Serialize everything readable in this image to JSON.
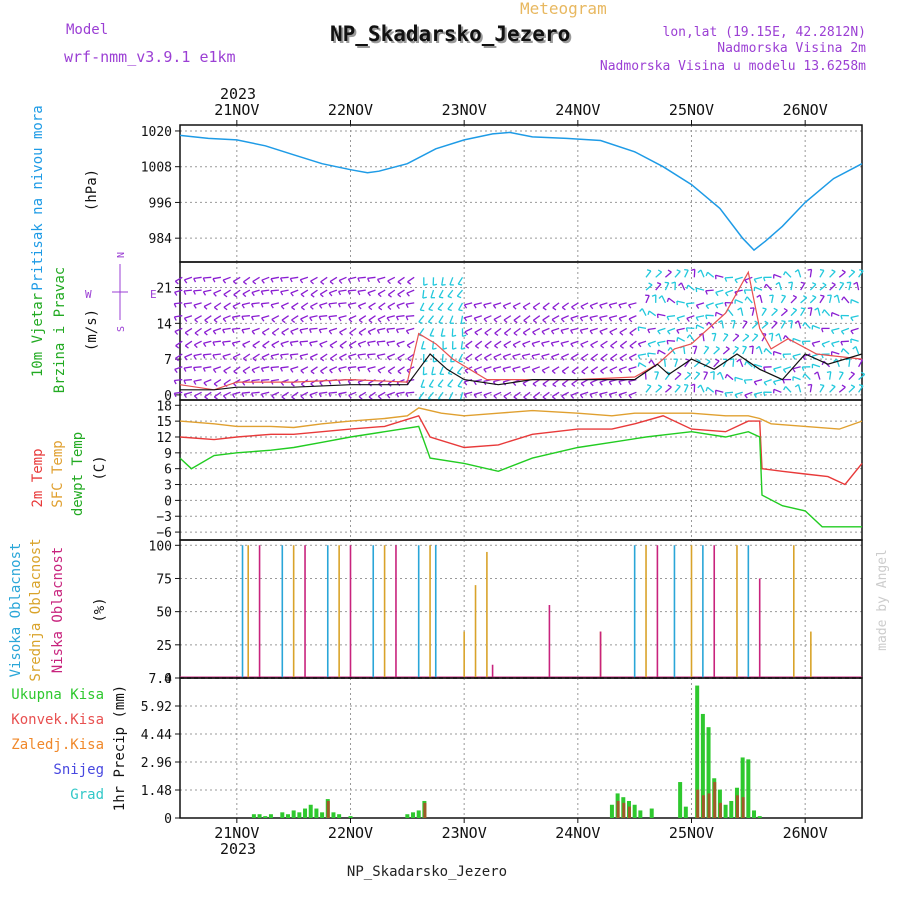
{
  "header": {
    "model_label": "Model",
    "model_name": "wrf-nmm_v3.9.1 e1km",
    "meteogram_label": "Meteogram",
    "station_title": "NP_Skadarsko_Jezero",
    "lonlat": "lon,lat (19.15E, 42.2812N)",
    "station_alt": "Nadmorska Visina 2m",
    "model_alt": "Nadmorska Visina u modelu 13.6258m",
    "footer_station": "NP_Skadarsko_Jezero",
    "credit": "made by Angel"
  },
  "colors": {
    "pressure": "#1e9be6",
    "temp2m": "#e83a3a",
    "sfc_temp": "#e0a030",
    "dewpt": "#22cc22",
    "wind_purple": "#8a1ed2",
    "wind_cyan": "#22c8dc",
    "high_cloud": "#2aa6d8",
    "mid_cloud": "#d9a32a",
    "low_cloud": "#c8237d",
    "precip_total": "#2ec82e",
    "precip_conv": "#e85050",
    "frozen": "#f0882a",
    "snow": "#4848e0",
    "graupel": "#32c8c8",
    "label_purple": "#9b3fd4"
  },
  "x_axis": {
    "year": "2023",
    "ticks": [
      "21NOV",
      "22NOV",
      "23NOV",
      "24NOV",
      "25NOV",
      "26NOV"
    ],
    "tick_days": [
      21,
      22,
      23,
      24,
      25,
      26
    ],
    "range_days": [
      20.5,
      26.5
    ]
  },
  "chart_data": [
    {
      "type": "line",
      "ylabel_main": "Pritisak na nivou mora",
      "ylabel_unit": "(hPa)",
      "yticks": [
        "1020",
        "1008",
        "996",
        "984"
      ],
      "ytick_values": [
        1020,
        1008,
        996,
        984
      ],
      "ylim": [
        976,
        1022
      ],
      "grid": true,
      "series": [
        {
          "x": [
            20.5,
            20.75,
            21.0,
            21.25,
            21.5,
            21.75,
            22.0,
            22.15,
            22.25,
            22.5,
            22.75,
            23.0,
            23.25,
            23.4,
            23.6,
            23.9,
            24.2,
            24.5,
            24.75,
            25.0,
            25.25,
            25.45,
            25.55,
            25.65,
            25.8,
            26.0,
            26.25,
            26.5
          ],
          "values": [
            1018.5,
            1017.5,
            1017.0,
            1015.0,
            1012.0,
            1009.0,
            1007.0,
            1006.0,
            1006.5,
            1009.0,
            1014.0,
            1017.0,
            1019.0,
            1019.5,
            1018.0,
            1017.5,
            1016.8,
            1013.0,
            1008.0,
            1002.0,
            994.0,
            984.0,
            980.0,
            983.0,
            988.0,
            996.0,
            1004.0,
            1009.0
          ]
        }
      ]
    },
    {
      "type": "line",
      "ylabel_lines": [
        "10m Vjetar",
        "Brzina i Pravac"
      ],
      "ylabel_unit": "(m/s)",
      "compass": {
        "n": "N",
        "s": "S",
        "e": "E",
        "w": "W"
      },
      "yticks": [
        "21",
        "14",
        "7",
        "0"
      ],
      "ytick_values": [
        21,
        14,
        7,
        0
      ],
      "ylim": [
        -1,
        26
      ],
      "grid": true,
      "series": [
        {
          "x": [
            20.5,
            20.8,
            21.0,
            21.5,
            22.0,
            22.5,
            22.6,
            22.7,
            22.85,
            23.0,
            23.3,
            23.6,
            23.9,
            24.2,
            24.5,
            24.7,
            24.8,
            25.0,
            25.2,
            25.4,
            25.6,
            25.8,
            26.0,
            26.2,
            26.5
          ],
          "values": [
            1,
            1,
            1.5,
            1.5,
            2,
            2,
            5,
            8,
            5,
            3,
            2,
            3,
            3,
            3,
            3,
            6,
            4,
            7,
            5,
            8,
            5,
            3,
            8,
            6,
            8
          ]
        },
        {
          "x": [
            20.5,
            20.8,
            21.0,
            21.5,
            22.0,
            22.5,
            22.6,
            22.75,
            22.9,
            23.2,
            23.5,
            24.0,
            24.5,
            24.7,
            24.85,
            25.0,
            25.3,
            25.5,
            25.6,
            25.7,
            25.85,
            26.1,
            26.5
          ],
          "values": [
            2,
            1,
            2.5,
            2.5,
            3,
            2.5,
            12,
            10,
            7,
            3,
            3,
            3,
            3.5,
            6,
            9,
            10,
            16,
            24,
            13,
            9,
            11,
            8,
            7
          ]
        }
      ]
    },
    {
      "type": "line",
      "ylabel_lines": [
        "2m Temp",
        "SFC Temp",
        "dewpt Temp"
      ],
      "ylabel_unit": "(C)",
      "yticks": [
        "18",
        "15",
        "12",
        "9",
        "6",
        "3",
        "0",
        "−3",
        "−6"
      ],
      "ytick_values": [
        18,
        15,
        12,
        9,
        6,
        3,
        0,
        -3,
        -6
      ],
      "ylim": [
        -7.5,
        19
      ],
      "grid": true,
      "series": [
        {
          "name": "2m Temp",
          "x": [
            20.5,
            20.8,
            21.0,
            21.3,
            21.5,
            21.75,
            22.0,
            22.3,
            22.6,
            22.7,
            23.0,
            23.3,
            23.6,
            24.0,
            24.3,
            24.5,
            24.75,
            25.0,
            25.3,
            25.5,
            25.6,
            25.62,
            25.8,
            26.0,
            26.2,
            26.35,
            26.5
          ],
          "values": [
            12,
            11.5,
            12,
            12.5,
            12.5,
            13,
            13.5,
            14,
            16,
            12,
            10,
            10.5,
            12.5,
            13.5,
            13.5,
            14.5,
            16,
            13.5,
            13,
            15,
            15,
            6,
            5.5,
            5,
            4.5,
            3,
            7
          ]
        },
        {
          "name": "SFC Temp",
          "x": [
            20.5,
            20.8,
            21.0,
            21.3,
            21.5,
            21.75,
            22.0,
            22.3,
            22.5,
            22.6,
            22.8,
            23.0,
            23.3,
            23.6,
            24.0,
            24.3,
            24.5,
            24.75,
            25.0,
            25.3,
            25.5,
            25.6,
            25.7,
            26.0,
            26.3,
            26.5
          ],
          "values": [
            15,
            14.5,
            14,
            14,
            13.8,
            14.5,
            15,
            15.5,
            16,
            17.5,
            16.5,
            16,
            16.5,
            17,
            16.5,
            16,
            16.5,
            16.5,
            16.5,
            16,
            16,
            15.5,
            14.5,
            14,
            13.5,
            15
          ]
        },
        {
          "name": "dewpt Temp",
          "x": [
            20.5,
            20.6,
            20.8,
            21.0,
            21.3,
            21.5,
            21.75,
            22.0,
            22.3,
            22.6,
            22.7,
            23.0,
            23.3,
            23.6,
            24.0,
            24.3,
            24.6,
            24.8,
            25.0,
            25.3,
            25.5,
            25.6,
            25.62,
            25.8,
            26.0,
            26.15,
            26.5
          ],
          "values": [
            8,
            6,
            8.5,
            9,
            9.5,
            10,
            11,
            12,
            13,
            14,
            8,
            7,
            5.5,
            8,
            10,
            11,
            12,
            12.5,
            13,
            12,
            13,
            12,
            1,
            -1,
            -2,
            -5,
            -5
          ]
        }
      ]
    },
    {
      "type": "bar",
      "ylabel_lines": [
        "Visoka Oblacnost",
        "Srednja Oblacnost",
        "Niska Oblacnost"
      ],
      "ylabel_unit": "(%)",
      "yticks": [
        "100",
        "75",
        "50",
        "25",
        "0"
      ],
      "ytick_values": [
        100,
        75,
        50,
        25,
        0
      ],
      "ylim": [
        0,
        104
      ],
      "grid": true,
      "series": [
        {
          "name": "Visoka Oblacnost",
          "x": [
            21.05,
            21.4,
            21.8,
            22.2,
            22.6,
            22.75,
            24.5,
            24.85,
            25.1,
            25.5
          ],
          "values": [
            100,
            100,
            100,
            100,
            100,
            100,
            100,
            100,
            100,
            100
          ]
        },
        {
          "name": "Srednja Oblacnost",
          "x": [
            21.1,
            21.5,
            21.9,
            22.3,
            22.7,
            23.0,
            23.1,
            23.2,
            24.2,
            24.6,
            25.0,
            25.4,
            25.9,
            26.05
          ],
          "values": [
            100,
            100,
            100,
            100,
            100,
            35,
            70,
            95,
            35,
            100,
            100,
            100,
            100,
            35
          ]
        },
        {
          "name": "Niska Oblacnost",
          "x": [
            21.2,
            21.6,
            22.0,
            22.4,
            23.25,
            23.75,
            24.2,
            24.7,
            25.2,
            25.6
          ],
          "values": [
            100,
            100,
            100,
            100,
            10,
            55,
            35,
            100,
            100,
            75
          ]
        }
      ]
    },
    {
      "type": "bar",
      "ylabel_main": "1hr Precip (mm)",
      "legend": [
        "Ukupna Kisa",
        "Konvek.Kisa",
        "Zaledj.Kisa",
        "Snijeg",
        "Grad"
      ],
      "yticks": [
        "7.4",
        "5.92",
        "4.44",
        "2.96",
        "1.48",
        "0"
      ],
      "ytick_values": [
        7.4,
        5.92,
        4.44,
        2.96,
        1.48,
        0
      ],
      "ylim": [
        0,
        7.4
      ],
      "grid": true,
      "series": [
        {
          "name": "Ukupna Kisa",
          "x": [
            21.15,
            21.2,
            21.25,
            21.3,
            21.4,
            21.45,
            21.5,
            21.55,
            21.6,
            21.65,
            21.7,
            21.75,
            21.8,
            21.85,
            21.9,
            22.0,
            22.5,
            22.55,
            22.6,
            22.65,
            24.3,
            24.35,
            24.4,
            24.45,
            24.5,
            24.55,
            24.65,
            24.9,
            24.95,
            25.05,
            25.1,
            25.15,
            25.2,
            25.25,
            25.3,
            25.35,
            25.4,
            25.45,
            25.5,
            25.55,
            25.6
          ],
          "values": [
            0.2,
            0.2,
            0.1,
            0.2,
            0.3,
            0.2,
            0.4,
            0.3,
            0.5,
            0.7,
            0.5,
            0.3,
            1.0,
            0.3,
            0.2,
            0.1,
            0.2,
            0.3,
            0.4,
            0.9,
            0.7,
            1.3,
            1.1,
            0.9,
            0.7,
            0.4,
            0.5,
            1.9,
            0.6,
            7.0,
            5.5,
            4.8,
            2.1,
            1.5,
            0.7,
            0.9,
            1.6,
            3.2,
            3.1,
            0.4,
            0.1
          ]
        },
        {
          "name": "Konvek.Kisa",
          "x": [
            21.8,
            22.65,
            24.35,
            24.4,
            24.45,
            25.05,
            25.1,
            25.15,
            25.2,
            25.25,
            25.4,
            25.45
          ],
          "values": [
            0.9,
            0.8,
            0.9,
            0.8,
            0.6,
            1.5,
            1.2,
            1.3,
            1.9,
            0.8,
            1.2,
            1.1
          ]
        }
      ]
    }
  ]
}
